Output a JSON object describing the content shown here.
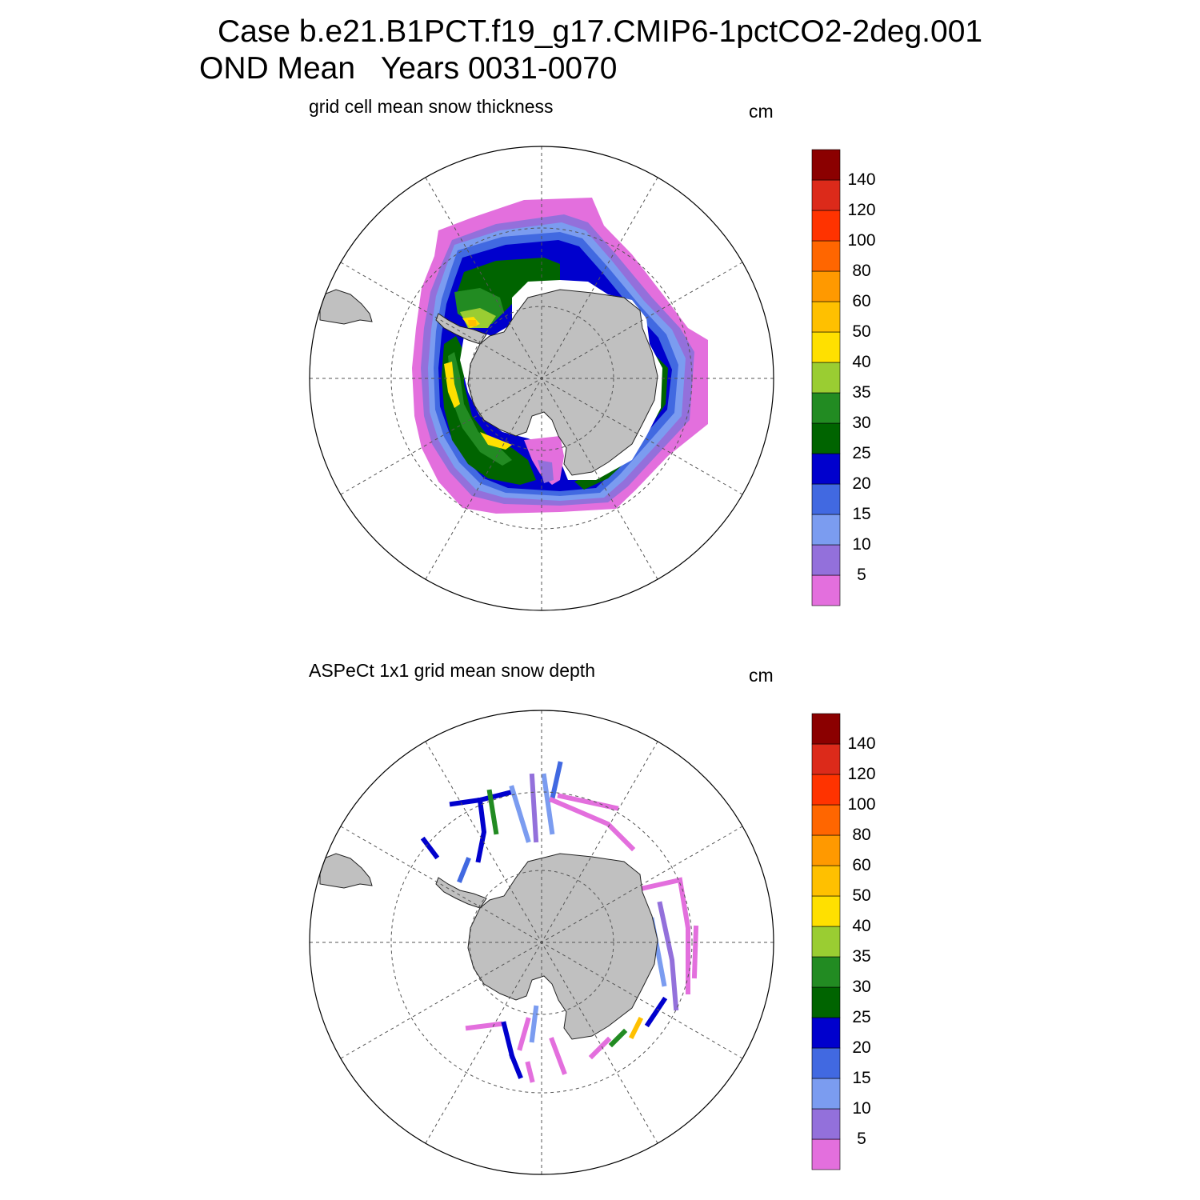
{
  "header": {
    "title_line1": "Case b.e21.B1PCT.f19_g17.CMIP6-1pctCO2-2deg.001",
    "title_line2": "OND Mean   Years 0031-0070"
  },
  "panels": [
    {
      "title": "grid cell mean snow thickness",
      "units": "cm"
    },
    {
      "title": "ASPeCt 1x1 grid mean snow depth",
      "units": "cm"
    }
  ],
  "colorbar": {
    "tick_labels": [
      "5",
      "10",
      "15",
      "20",
      "25",
      "30",
      "35",
      "40",
      "50",
      "60",
      "80",
      "100",
      "120",
      "140"
    ],
    "colors": [
      "#e36fdd",
      "#9370db",
      "#7b9cf0",
      "#4169e1",
      "#0000cd",
      "#006400",
      "#228b22",
      "#9acd32",
      "#ffe000",
      "#ffc000",
      "#ff9900",
      "#ff6600",
      "#ff3300",
      "#dc2a1a",
      "#8b0000"
    ]
  },
  "map_colors": {
    "land": "#c0c0c0",
    "grid": "#555555",
    "ocean": "#ffffff"
  }
}
